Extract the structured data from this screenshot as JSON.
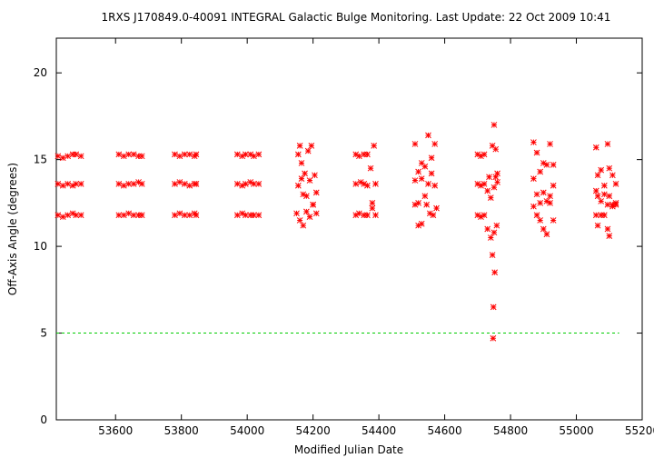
{
  "chart_data": {
    "type": "scatter",
    "title": "1RXS J170849.0-40091   INTEGRAL Galactic Bulge Monitoring.  Last Update: 22 Oct 2009 10:41",
    "xlabel": "Modified Julian Date",
    "ylabel": "Off-Axis Angle (degrees)",
    "xlim": [
      53420,
      55200
    ],
    "ylim": [
      0,
      22
    ],
    "xticks": [
      53600,
      53800,
      54000,
      54200,
      54400,
      54600,
      54800,
      55000,
      55200
    ],
    "yticks": [
      0,
      5,
      10,
      15,
      20
    ],
    "grid": false,
    "legend": "none",
    "marker": "asterisk",
    "colors": {
      "points": "#ff0000",
      "reference_line": "#00cc00",
      "axes": "#000000"
    },
    "reference_line": {
      "y": 5,
      "x_range": [
        53420,
        55130
      ],
      "style": "dashed"
    },
    "series": [
      {
        "values": [
          [
            53425,
            15.2
          ],
          [
            53440,
            15.1
          ],
          [
            53455,
            15.2
          ],
          [
            53470,
            15.3
          ],
          [
            53480,
            15.3
          ],
          [
            53495,
            15.2
          ],
          [
            53425,
            13.6
          ],
          [
            53440,
            13.5
          ],
          [
            53455,
            13.6
          ],
          [
            53470,
            13.5
          ],
          [
            53480,
            13.6
          ],
          [
            53495,
            13.6
          ],
          [
            53425,
            11.8
          ],
          [
            53440,
            11.7
          ],
          [
            53455,
            11.8
          ],
          [
            53470,
            11.9
          ],
          [
            53480,
            11.8
          ],
          [
            53495,
            11.8
          ],
          [
            53610,
            15.3
          ],
          [
            53625,
            15.2
          ],
          [
            53640,
            15.3
          ],
          [
            53655,
            15.3
          ],
          [
            53670,
            15.2
          ],
          [
            53680,
            15.2
          ],
          [
            53610,
            13.6
          ],
          [
            53625,
            13.5
          ],
          [
            53640,
            13.6
          ],
          [
            53655,
            13.6
          ],
          [
            53670,
            13.7
          ],
          [
            53680,
            13.6
          ],
          [
            53610,
            11.8
          ],
          [
            53625,
            11.8
          ],
          [
            53640,
            11.9
          ],
          [
            53655,
            11.8
          ],
          [
            53670,
            11.8
          ],
          [
            53680,
            11.8
          ],
          [
            53780,
            15.3
          ],
          [
            53795,
            15.2
          ],
          [
            53810,
            15.3
          ],
          [
            53825,
            15.3
          ],
          [
            53840,
            15.2
          ],
          [
            53845,
            15.3
          ],
          [
            53780,
            13.6
          ],
          [
            53795,
            13.7
          ],
          [
            53810,
            13.6
          ],
          [
            53825,
            13.5
          ],
          [
            53840,
            13.6
          ],
          [
            53845,
            13.6
          ],
          [
            53780,
            11.8
          ],
          [
            53795,
            11.9
          ],
          [
            53810,
            11.8
          ],
          [
            53825,
            11.8
          ],
          [
            53840,
            11.9
          ],
          [
            53845,
            11.8
          ],
          [
            53970,
            15.3
          ],
          [
            53985,
            15.2
          ],
          [
            53995,
            15.3
          ],
          [
            54010,
            15.3
          ],
          [
            54020,
            15.2
          ],
          [
            54035,
            15.3
          ],
          [
            53970,
            13.6
          ],
          [
            53985,
            13.5
          ],
          [
            53995,
            13.6
          ],
          [
            54010,
            13.7
          ],
          [
            54020,
            13.6
          ],
          [
            54035,
            13.6
          ],
          [
            53970,
            11.8
          ],
          [
            53985,
            11.9
          ],
          [
            53995,
            11.8
          ],
          [
            54010,
            11.8
          ],
          [
            54020,
            11.8
          ],
          [
            54035,
            11.8
          ],
          [
            54155,
            15.3
          ],
          [
            54160,
            15.8
          ],
          [
            54165,
            14.8
          ],
          [
            54175,
            14.2
          ],
          [
            54185,
            15.5
          ],
          [
            54195,
            15.8
          ],
          [
            54205,
            14.1
          ],
          [
            54155,
            13.5
          ],
          [
            54165,
            13.9
          ],
          [
            54170,
            13.0
          ],
          [
            54180,
            12.9
          ],
          [
            54190,
            13.8
          ],
          [
            54200,
            12.4
          ],
          [
            54210,
            13.1
          ],
          [
            54150,
            11.9
          ],
          [
            54160,
            11.5
          ],
          [
            54170,
            11.2
          ],
          [
            54180,
            12.0
          ],
          [
            54190,
            11.7
          ],
          [
            54200,
            12.4
          ],
          [
            54210,
            11.9
          ],
          [
            54330,
            15.3
          ],
          [
            54340,
            15.2
          ],
          [
            54355,
            15.3
          ],
          [
            54365,
            15.3
          ],
          [
            54375,
            14.5
          ],
          [
            54385,
            15.8
          ],
          [
            54330,
            13.6
          ],
          [
            54345,
            13.7
          ],
          [
            54355,
            13.6
          ],
          [
            54365,
            13.5
          ],
          [
            54380,
            12.5
          ],
          [
            54390,
            13.6
          ],
          [
            54330,
            11.8
          ],
          [
            54340,
            11.9
          ],
          [
            54355,
            11.8
          ],
          [
            54365,
            11.8
          ],
          [
            54380,
            12.2
          ],
          [
            54390,
            11.8
          ],
          [
            54510,
            15.9
          ],
          [
            54520,
            14.3
          ],
          [
            54530,
            14.8
          ],
          [
            54540,
            14.6
          ],
          [
            54550,
            16.4
          ],
          [
            54560,
            15.1
          ],
          [
            54570,
            15.9
          ],
          [
            54510,
            13.8
          ],
          [
            54520,
            12.5
          ],
          [
            54530,
            13.9
          ],
          [
            54540,
            12.9
          ],
          [
            54550,
            13.6
          ],
          [
            54560,
            14.2
          ],
          [
            54570,
            13.5
          ],
          [
            54510,
            12.4
          ],
          [
            54520,
            11.2
          ],
          [
            54530,
            11.3
          ],
          [
            54545,
            12.4
          ],
          [
            54555,
            11.9
          ],
          [
            54565,
            11.8
          ],
          [
            54575,
            12.2
          ],
          [
            54700,
            15.3
          ],
          [
            54710,
            15.2
          ],
          [
            54720,
            15.3
          ],
          [
            54735,
            14.0
          ],
          [
            54745,
            15.8
          ],
          [
            54750,
            17.0
          ],
          [
            54755,
            15.6
          ],
          [
            54760,
            14.2
          ],
          [
            54700,
            13.6
          ],
          [
            54710,
            13.5
          ],
          [
            54720,
            13.6
          ],
          [
            54730,
            13.2
          ],
          [
            54740,
            12.8
          ],
          [
            54750,
            13.4
          ],
          [
            54755,
            14.0
          ],
          [
            54760,
            13.7
          ],
          [
            54700,
            11.8
          ],
          [
            54710,
            11.7
          ],
          [
            54720,
            11.8
          ],
          [
            54730,
            11.0
          ],
          [
            54740,
            10.5
          ],
          [
            54745,
            9.5
          ],
          [
            54750,
            10.8
          ],
          [
            54752,
            8.5
          ],
          [
            54748,
            6.5
          ],
          [
            54747,
            4.7
          ],
          [
            54758,
            11.2
          ],
          [
            54870,
            16.0
          ],
          [
            54880,
            15.4
          ],
          [
            54890,
            14.3
          ],
          [
            54900,
            14.8
          ],
          [
            54910,
            14.7
          ],
          [
            54920,
            15.9
          ],
          [
            54930,
            14.7
          ],
          [
            54870,
            13.9
          ],
          [
            54880,
            13.0
          ],
          [
            54890,
            12.5
          ],
          [
            54900,
            13.1
          ],
          [
            54910,
            12.6
          ],
          [
            54920,
            12.9
          ],
          [
            54930,
            13.5
          ],
          [
            54870,
            12.3
          ],
          [
            54880,
            11.8
          ],
          [
            54890,
            11.5
          ],
          [
            54900,
            11.0
          ],
          [
            54910,
            10.7
          ],
          [
            54920,
            12.5
          ],
          [
            54930,
            11.5
          ],
          [
            55060,
            15.7
          ],
          [
            55065,
            14.1
          ],
          [
            55075,
            14.4
          ],
          [
            55085,
            13.5
          ],
          [
            55095,
            15.9
          ],
          [
            55100,
            14.5
          ],
          [
            55110,
            14.1
          ],
          [
            55120,
            13.6
          ],
          [
            55060,
            13.2
          ],
          [
            55065,
            12.9
          ],
          [
            55075,
            12.6
          ],
          [
            55085,
            13.0
          ],
          [
            55095,
            12.4
          ],
          [
            55100,
            12.9
          ],
          [
            55110,
            12.4
          ],
          [
            55120,
            12.4
          ],
          [
            55060,
            11.8
          ],
          [
            55065,
            11.2
          ],
          [
            55075,
            11.8
          ],
          [
            55085,
            11.8
          ],
          [
            55095,
            11.0
          ],
          [
            55100,
            10.6
          ],
          [
            55110,
            12.3
          ],
          [
            55120,
            12.5
          ]
        ]
      }
    ]
  }
}
